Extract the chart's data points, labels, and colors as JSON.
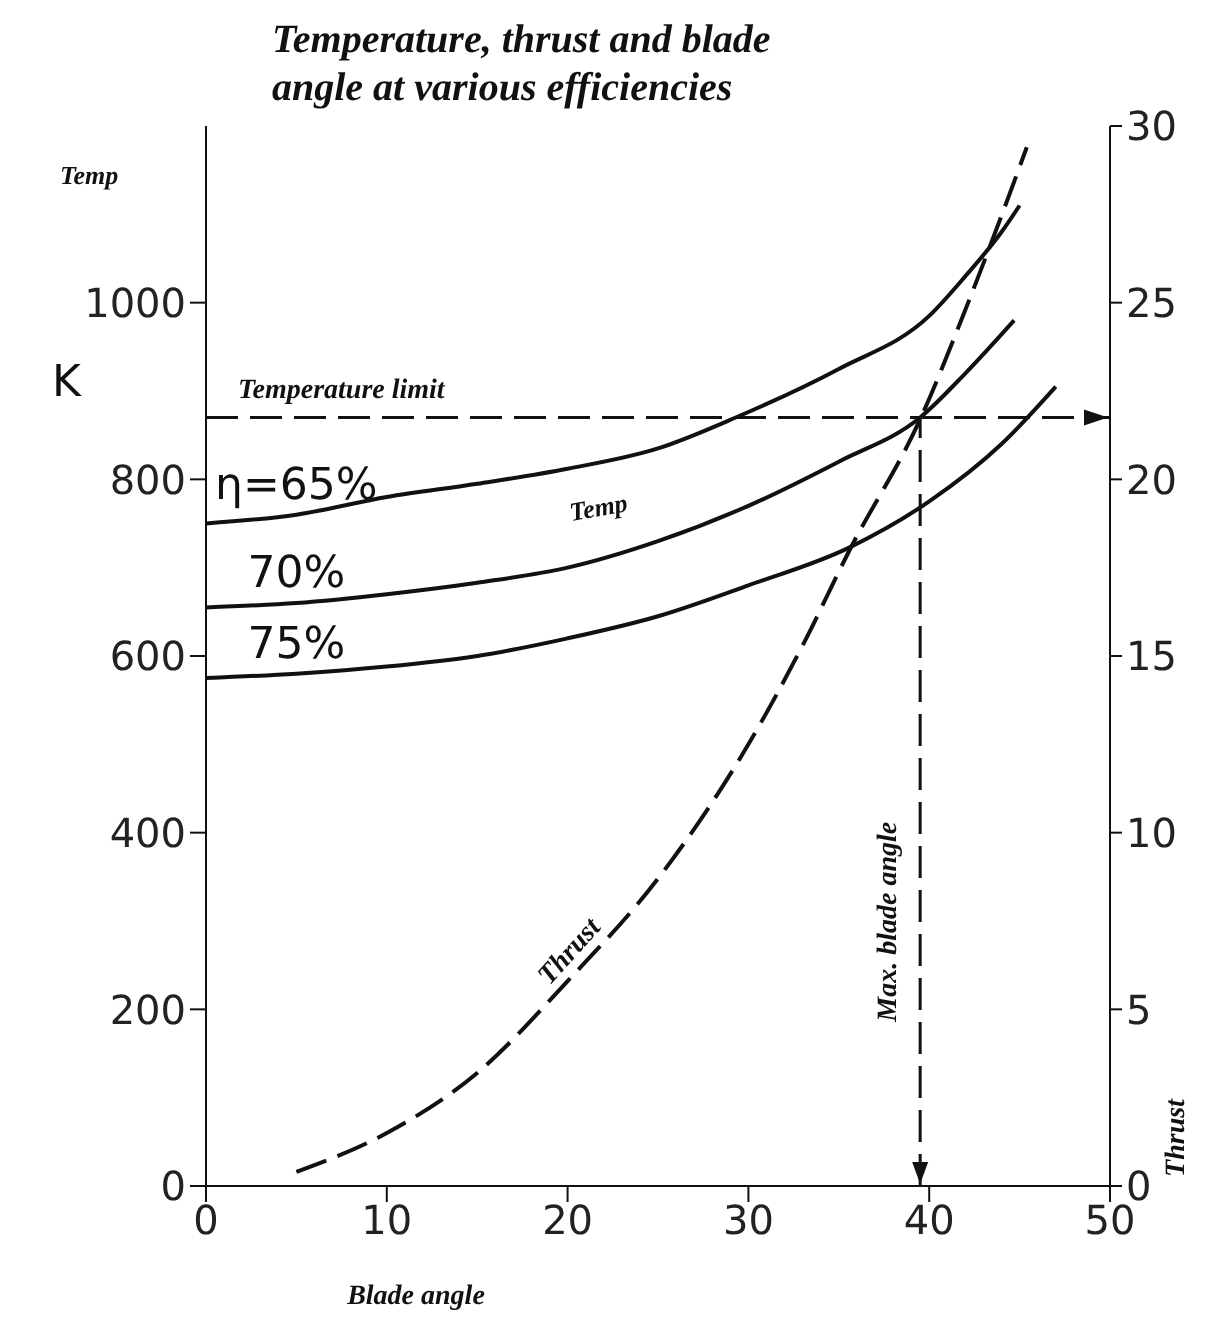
{
  "chart_data": {
    "type": "line",
    "title": "Temperature, thrust and blade angle at various efficiencies",
    "xlabel": "Blade angle",
    "ylabel": "Temp",
    "y2label": "Thrust",
    "annotations": [
      "K",
      "Temp"
    ],
    "marker": "none",
    "series": [
      {
        "name": "η=65%",
        "color": "#111111",
        "line_style": "solid",
        "x": [
          0,
          5,
          10,
          15,
          20,
          25,
          29.3,
          35,
          40,
          42,
          44,
          45
        ],
        "values": [
          750,
          760,
          780,
          795,
          812,
          835,
          870,
          925,
          985,
          1030,
          1080,
          1110
        ]
      },
      {
        "name": "70%",
        "color": "#111111",
        "line_style": "solid",
        "x": [
          0,
          5,
          10,
          15,
          20,
          25,
          30,
          35,
          39.5,
          42,
          44.7
        ],
        "values": [
          655,
          660,
          670,
          683,
          700,
          730,
          770,
          820,
          870,
          920,
          980
        ]
      },
      {
        "name": "75%",
        "color": "#111111",
        "line_style": "solid",
        "x": [
          0,
          5,
          10,
          15,
          20,
          25,
          30,
          35.6,
          40,
          44,
          47
        ],
        "values": [
          575,
          580,
          588,
          600,
          620,
          645,
          680,
          723,
          775,
          840,
          905
        ]
      },
      {
        "name": "Thrust",
        "color": "#111111",
        "line_style": "dashed",
        "axis": "y2",
        "x": [
          5,
          10,
          15,
          20,
          25,
          30,
          33,
          35.6,
          39.5,
          42,
          44.1,
          45.4
        ],
        "values": [
          0.4,
          1.5,
          3.2,
          5.8,
          8.7,
          12.5,
          15.3,
          18,
          21.7,
          24.8,
          27.6,
          29.4
        ]
      }
    ],
    "xlim": [
      0,
      50
    ],
    "xticks": [
      0,
      10,
      20,
      30,
      40,
      50
    ],
    "ylim": [
      0,
      1200
    ],
    "yticks": [
      0,
      200,
      400,
      600,
      800,
      1000
    ],
    "y2lim": [
      0,
      30
    ],
    "y2ticks": [
      0,
      5,
      10,
      15,
      20,
      25,
      30
    ],
    "ref_lines": [
      {
        "axis": "y",
        "value": 870,
        "label": "Temperature limit",
        "line_style": "dashed"
      },
      {
        "axis": "x",
        "value": 39.5,
        "label": "Max. blade angle",
        "line_style": "dashed"
      }
    ]
  }
}
